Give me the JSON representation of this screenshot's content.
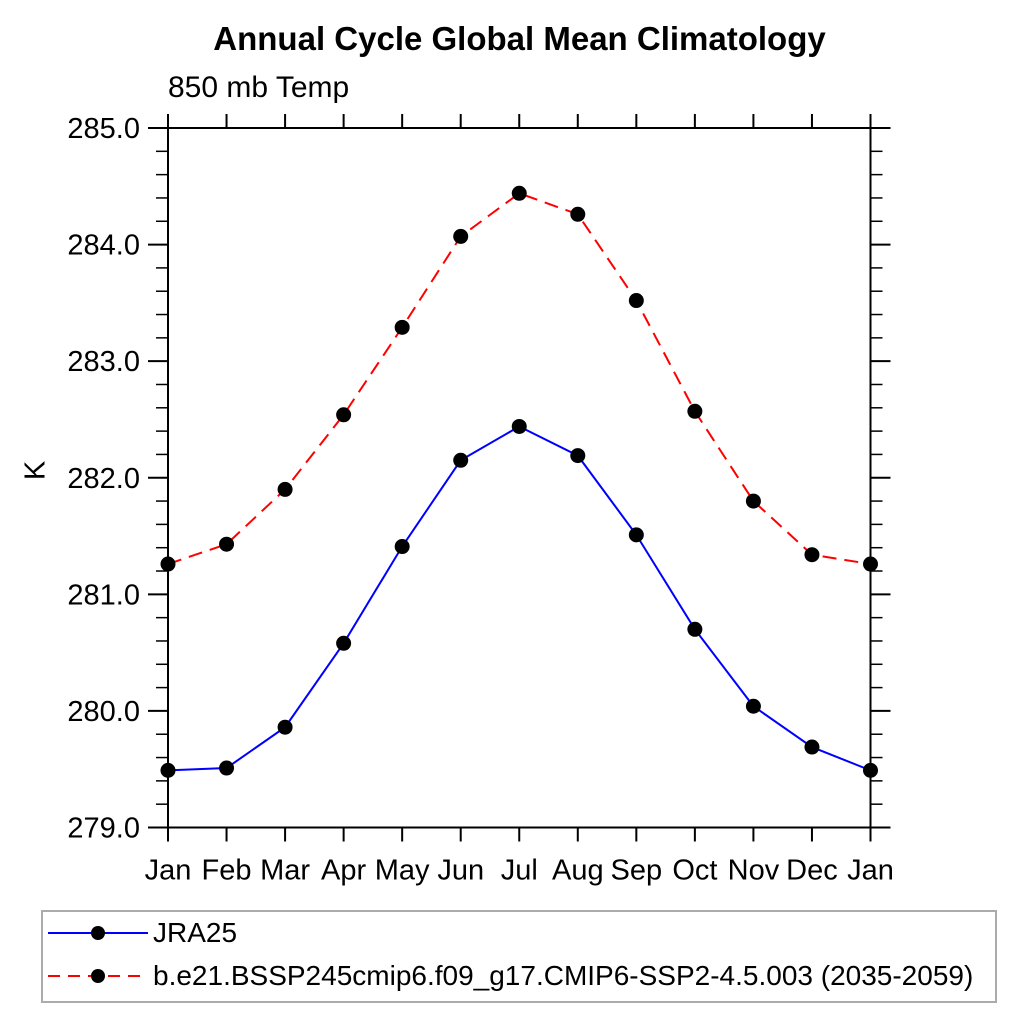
{
  "title": "Annual Cycle Global Mean Climatology",
  "subtitle": "850 mb Temp",
  "y_axis_title": "K",
  "colors": {
    "series_jra25": "#0000ff",
    "series_model": "#ff0000",
    "marker": "#000000",
    "axis": "#000000",
    "legend_border": "#ababab",
    "background": "#ffffff"
  },
  "legend": {
    "items": [
      {
        "label": "JRA25",
        "color": "#0000ff",
        "line_style": "solid",
        "marker": "filled-circle"
      },
      {
        "label": "b.e21.BSSP245cmip6.f09_g17.CMIP6-SSP2-4.5.003 (2035-2059)",
        "color": "#ff0000",
        "line_style": "dashed",
        "marker": "filled-circle"
      }
    ]
  },
  "chart_data": {
    "type": "line",
    "title": "Annual Cycle Global Mean Climatology",
    "subtitle": "850 mb Temp",
    "xlabel": "",
    "ylabel": "K",
    "categories": [
      "Jan",
      "Feb",
      "Mar",
      "Apr",
      "May",
      "Jun",
      "Jul",
      "Aug",
      "Sep",
      "Oct",
      "Nov",
      "Dec",
      "Jan"
    ],
    "ylim": [
      279.0,
      285.0
    ],
    "ytick_step": 1.0,
    "yminor_step": 0.2,
    "ytick_labels": [
      "279.0",
      "280.0",
      "281.0",
      "282.0",
      "283.0",
      "284.0",
      "285.0"
    ],
    "grid": false,
    "legend_position": "bottom-left-boxed",
    "series": [
      {
        "name": "JRA25",
        "color": "#0000ff",
        "line_style": "solid",
        "marker": "filled-circle",
        "values": [
          279.49,
          279.51,
          279.86,
          280.58,
          281.41,
          282.15,
          282.44,
          282.19,
          281.51,
          280.7,
          280.04,
          279.69,
          279.49
        ]
      },
      {
        "name": "b.e21.BSSP245cmip6.f09_g17.CMIP6-SSP2-4.5.003 (2035-2059)",
        "color": "#ff0000",
        "line_style": "dashed",
        "marker": "filled-circle",
        "values": [
          281.26,
          281.43,
          281.9,
          282.54,
          283.29,
          284.07,
          284.44,
          284.26,
          283.52,
          282.57,
          281.8,
          281.34,
          281.26
        ]
      }
    ]
  }
}
